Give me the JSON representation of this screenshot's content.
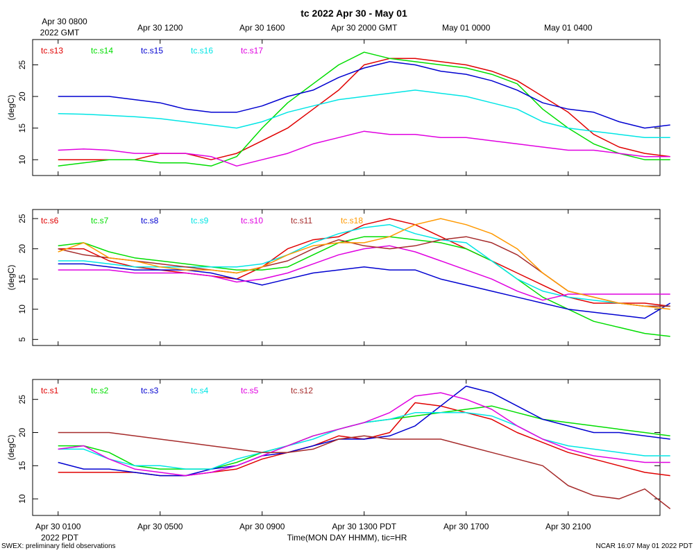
{
  "header": {
    "title": "tc 2022 Apr 30 - May 01",
    "top_start_line1": "Apr 30 0800",
    "top_start_line2": "2022 GMT",
    "bottom_start_line2": "2022 PDT",
    "xlabel": "Time(MON DAY HHMM), tic=HR"
  },
  "footer": {
    "left": "SWEX: preliminary field observations",
    "right": "NCAR 16:07 May 01 2022 PDT"
  },
  "chart_data": {
    "type": "line",
    "x_hours_pdt": [
      1,
      2,
      3,
      4,
      5,
      6,
      7,
      8,
      9,
      10,
      11,
      12,
      13,
      14,
      15,
      16,
      17,
      18,
      19,
      20,
      21,
      22,
      23,
      24,
      25
    ],
    "x_range_hours": [
      0.0,
      24.6
    ],
    "top_ticks": [
      {
        "hour": 5,
        "label": "Apr 30 1200"
      },
      {
        "hour": 9,
        "label": "Apr 30 1600"
      },
      {
        "hour": 13,
        "label": "Apr 30 2000 GMT"
      },
      {
        "hour": 17,
        "label": "May 01 0000"
      },
      {
        "hour": 21,
        "label": "May 01 0400"
      }
    ],
    "bottom_ticks": [
      {
        "hour": 1,
        "label": "Apr 30 0100"
      },
      {
        "hour": 5,
        "label": "Apr 30 0500"
      },
      {
        "hour": 9,
        "label": "Apr 30 0900"
      },
      {
        "hour": 13,
        "label": "Apr 30 1300 PDT"
      },
      {
        "hour": 17,
        "label": "Apr 30 1700"
      },
      {
        "hour": 21,
        "label": "Apr 30 2100"
      }
    ],
    "panels": [
      {
        "ylabel": "(degC)",
        "ylim": [
          7.5,
          29
        ],
        "yticks": [
          10,
          15,
          20,
          25
        ],
        "series": [
          {
            "name": "tc.s13",
            "color": "#e00000",
            "values": [
              10.0,
              10.0,
              10.0,
              10.0,
              11.0,
              11.0,
              10.0,
              11.0,
              13.0,
              15.0,
              18.0,
              21.0,
              25.0,
              26.0,
              26.0,
              25.5,
              25.0,
              24.0,
              22.5,
              20.0,
              17.5,
              14.0,
              12.0,
              11.0,
              10.5
            ]
          },
          {
            "name": "tc.s14",
            "color": "#00dd00",
            "values": [
              9.0,
              9.5,
              10.0,
              10.0,
              9.5,
              9.5,
              9.0,
              10.5,
              15.0,
              19.0,
              22.0,
              25.0,
              27.0,
              26.0,
              25.5,
              25.0,
              24.5,
              23.5,
              22.0,
              18.0,
              15.0,
              12.5,
              11.0,
              10.0,
              10.0
            ]
          },
          {
            "name": "tc.s15",
            "color": "#0000d0",
            "values": [
              20.0,
              20.0,
              20.0,
              19.5,
              19.0,
              18.0,
              17.5,
              17.5,
              18.5,
              20.0,
              21.0,
              23.0,
              24.5,
              25.5,
              25.0,
              24.0,
              23.5,
              22.5,
              21.0,
              19.0,
              18.0,
              17.5,
              16.0,
              15.0,
              15.5
            ]
          },
          {
            "name": "tc.s16",
            "color": "#00e5e5",
            "values": [
              17.3,
              17.2,
              17.0,
              16.8,
              16.5,
              16.0,
              15.5,
              15.0,
              16.0,
              17.5,
              18.5,
              19.5,
              20.0,
              20.5,
              21.0,
              20.5,
              20.0,
              19.0,
              18.0,
              16.0,
              15.0,
              14.5,
              14.0,
              13.5,
              13.5
            ]
          },
          {
            "name": "tc.s17",
            "color": "#e000e0",
            "values": [
              11.5,
              11.7,
              11.5,
              11.0,
              11.0,
              11.0,
              10.5,
              9.0,
              10.0,
              11.0,
              12.5,
              13.5,
              14.5,
              14.0,
              14.0,
              13.5,
              13.5,
              13.0,
              12.5,
              12.0,
              11.5,
              11.5,
              11.0,
              10.5,
              10.5
            ]
          }
        ]
      },
      {
        "ylabel": "(degC)",
        "ylim": [
          4,
          26.5
        ],
        "yticks": [
          5,
          10,
          15,
          20,
          25
        ],
        "series": [
          {
            "name": "tc.s6",
            "color": "#e00000",
            "values": [
              20.0,
              20.0,
              18.0,
              17.0,
              16.5,
              16.0,
              15.5,
              15.0,
              17.0,
              20.0,
              21.5,
              22.0,
              24.0,
              25.0,
              24.0,
              22.0,
              20.0,
              18.0,
              16.0,
              14.0,
              12.0,
              11.0,
              11.0,
              11.0,
              10.5
            ]
          },
          {
            "name": "tc.s7",
            "color": "#00dd00",
            "values": [
              20.5,
              21.0,
              19.5,
              18.5,
              18.0,
              17.5,
              17.0,
              16.5,
              16.5,
              17.0,
              19.0,
              21.0,
              22.0,
              22.0,
              21.5,
              21.0,
              20.0,
              18.0,
              15.0,
              12.0,
              10.0,
              8.0,
              7.0,
              6.0,
              5.5
            ]
          },
          {
            "name": "tc.s8",
            "color": "#0000d0",
            "values": [
              17.5,
              17.5,
              17.0,
              16.5,
              16.5,
              16.5,
              16.0,
              15.0,
              14.0,
              15.0,
              16.0,
              16.5,
              17.0,
              16.5,
              16.5,
              15.0,
              14.0,
              13.0,
              12.0,
              11.0,
              10.0,
              9.5,
              9.0,
              8.5,
              11.0
            ]
          },
          {
            "name": "tc.s9",
            "color": "#00e5e5",
            "values": [
              18.0,
              18.0,
              17.5,
              17.0,
              17.0,
              17.0,
              17.0,
              17.0,
              17.5,
              19.0,
              21.0,
              22.5,
              23.5,
              24.0,
              22.5,
              21.5,
              21.0,
              18.0,
              15.0,
              13.0,
              12.0,
              11.5,
              11.0,
              10.5,
              10.5
            ]
          },
          {
            "name": "tc.s10",
            "color": "#e000e0",
            "values": [
              16.5,
              16.5,
              16.5,
              16.0,
              16.0,
              16.0,
              15.5,
              14.5,
              15.0,
              16.0,
              17.5,
              19.0,
              20.0,
              20.5,
              19.5,
              18.0,
              16.5,
              15.0,
              13.0,
              11.5,
              12.5,
              12.5,
              12.5,
              12.5,
              12.5
            ]
          },
          {
            "name": "tc.s11",
            "color": "#a52a2a",
            "values": [
              20.0,
              19.0,
              18.5,
              18.0,
              17.5,
              17.0,
              16.5,
              16.0,
              17.0,
              18.0,
              20.0,
              21.5,
              20.5,
              20.0,
              20.5,
              21.5,
              22.0,
              21.0,
              19.0,
              16.0,
              13.0,
              12.0,
              11.0,
              10.5,
              10.5
            ]
          },
          {
            "name": "tc.s18",
            "color": "#ff9900",
            "values": [
              19.5,
              21.0,
              18.5,
              18.0,
              17.0,
              16.5,
              16.5,
              16.0,
              17.0,
              19.0,
              20.5,
              21.0,
              21.0,
              22.0,
              24.0,
              25.0,
              24.0,
              22.5,
              20.0,
              16.0,
              13.0,
              12.0,
              11.0,
              10.5,
              10.0
            ]
          }
        ]
      },
      {
        "ylabel": "(degC)",
        "ylim": [
          7.5,
          28
        ],
        "yticks": [
          10,
          15,
          20,
          25
        ],
        "series": [
          {
            "name": "tc.s1",
            "color": "#e00000",
            "values": [
              14.0,
              14.0,
              14.0,
              14.0,
              13.5,
              13.5,
              14.0,
              14.5,
              16.0,
              17.0,
              18.0,
              19.5,
              19.0,
              20.0,
              24.5,
              24.0,
              23.0,
              22.0,
              20.0,
              18.5,
              17.0,
              16.0,
              15.0,
              14.0,
              13.5
            ]
          },
          {
            "name": "tc.s2",
            "color": "#00dd00",
            "values": [
              18.0,
              18.0,
              17.0,
              15.0,
              14.5,
              14.5,
              14.5,
              15.5,
              17.0,
              18.0,
              19.5,
              20.5,
              21.5,
              22.0,
              22.5,
              23.0,
              23.5,
              24.0,
              23.0,
              22.0,
              21.5,
              21.0,
              20.5,
              20.0,
              19.5
            ]
          },
          {
            "name": "tc.s3",
            "color": "#0000d0",
            "values": [
              15.5,
              14.5,
              14.5,
              14.0,
              13.5,
              13.5,
              14.5,
              15.0,
              16.5,
              17.0,
              18.0,
              19.0,
              19.0,
              19.5,
              21.0,
              24.0,
              27.0,
              26.0,
              24.0,
              22.0,
              21.0,
              20.0,
              20.0,
              19.5,
              19.0
            ]
          },
          {
            "name": "tc.s4",
            "color": "#00e5e5",
            "values": [
              17.5,
              17.5,
              16.0,
              15.0,
              15.0,
              14.5,
              14.5,
              16.0,
              17.0,
              18.0,
              19.0,
              20.5,
              21.5,
              22.0,
              23.0,
              23.0,
              23.0,
              22.5,
              21.0,
              19.0,
              18.0,
              17.5,
              17.0,
              16.5,
              16.5
            ]
          },
          {
            "name": "tc.s5",
            "color": "#e000e0",
            "values": [
              17.5,
              18.0,
              16.0,
              14.5,
              14.0,
              13.5,
              14.0,
              15.0,
              16.5,
              18.0,
              19.5,
              20.5,
              21.5,
              23.0,
              25.5,
              26.0,
              25.0,
              23.5,
              21.0,
              19.0,
              17.5,
              16.5,
              16.0,
              15.5,
              15.5
            ]
          },
          {
            "name": "tc.s12",
            "color": "#a52a2a",
            "values": [
              20.0,
              20.0,
              20.0,
              19.5,
              19.0,
              18.5,
              18.0,
              17.5,
              17.0,
              17.0,
              17.5,
              19.0,
              19.5,
              19.0,
              19.0,
              19.0,
              18.0,
              17.0,
              16.0,
              15.0,
              12.0,
              10.5,
              10.0,
              11.5,
              8.5
            ]
          }
        ]
      }
    ]
  }
}
